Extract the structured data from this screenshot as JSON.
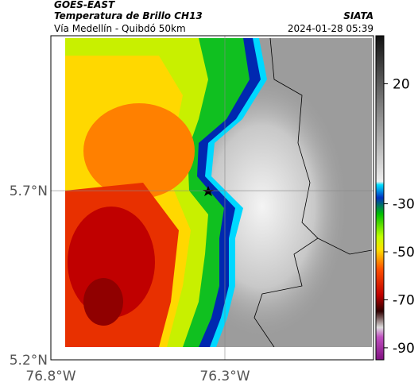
{
  "header": {
    "title": "GOES-EAST",
    "subtitle": "Temperatura de Brillo CH13",
    "route": "Vía Medellín - Quibdó 50km",
    "source": "SIATA",
    "timestamp": "2024-01-28 05:39"
  },
  "map": {
    "xlim": [
      -76.8,
      -75.873
    ],
    "ylim": [
      5.2,
      6.158
    ],
    "xticks": [
      {
        "value": -76.8,
        "label": "76.8°W"
      },
      {
        "value": -76.3,
        "label": "76.3°W"
      }
    ],
    "yticks": [
      {
        "value": 5.2,
        "label": "5.2°N"
      },
      {
        "value": 5.7,
        "label": "5.7°N"
      }
    ]
  },
  "colorbar": {
    "lim": [
      40,
      -95
    ],
    "ticks": [
      20,
      -30,
      -50,
      -70,
      -90
    ]
  }
}
